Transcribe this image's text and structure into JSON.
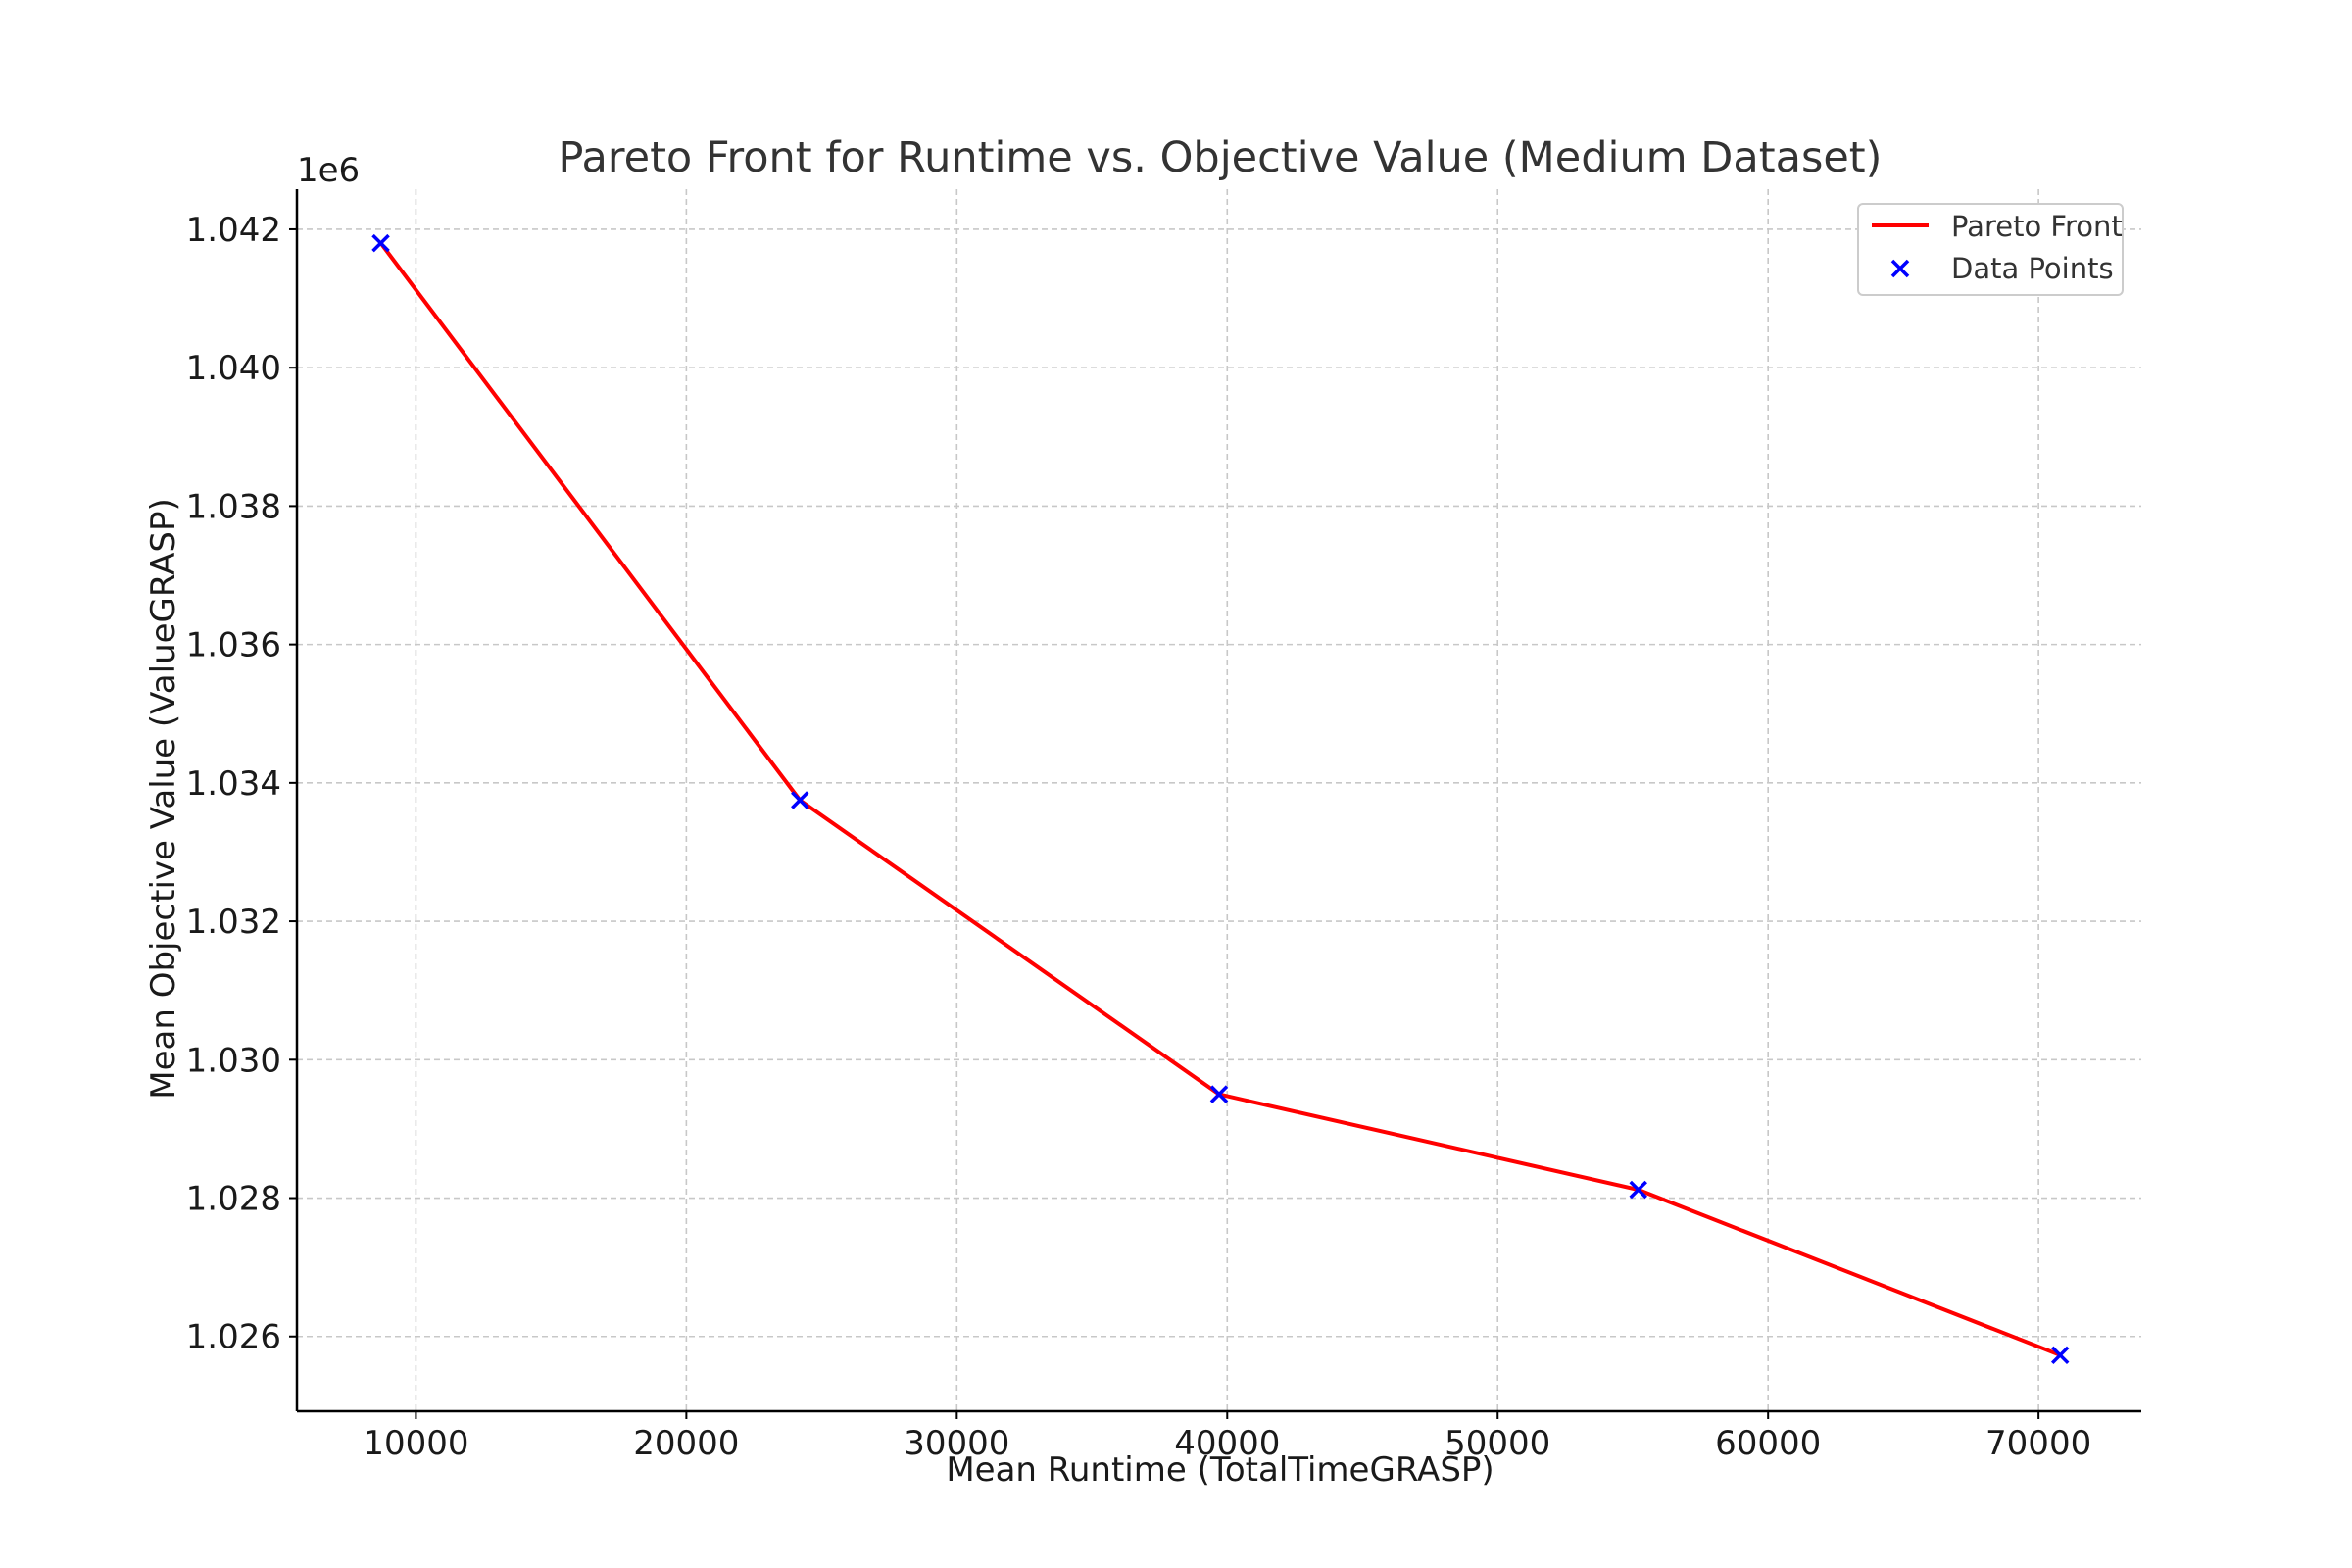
{
  "chart_data": {
    "type": "line",
    "title": "Pareto Front for Runtime vs. Objective Value (Medium Dataset)",
    "xlabel": "Mean Runtime (TotalTimeGRASP)",
    "ylabel": "Mean Objective Value (ValueGRASP)",
    "y_offset_label": "1e6",
    "xlim": [
      5600,
      73800
    ],
    "ylim": [
      1024920,
      1042580
    ],
    "x_ticks": [
      10000,
      20000,
      30000,
      40000,
      50000,
      60000,
      70000
    ],
    "x_tick_labels": [
      "10000",
      "20000",
      "30000",
      "40000",
      "50000",
      "60000",
      "70000"
    ],
    "y_ticks": [
      1026000,
      1028000,
      1030000,
      1032000,
      1034000,
      1036000,
      1038000,
      1040000,
      1042000
    ],
    "y_tick_labels": [
      "1.026",
      "1.028",
      "1.030",
      "1.032",
      "1.034",
      "1.036",
      "1.038",
      "1.040",
      "1.042"
    ],
    "grid": true,
    "legend_position": "top-right",
    "series": [
      {
        "name": "Pareto Front",
        "kind": "line",
        "color": "#ff0000",
        "x": [
          8700,
          24200,
          39700,
          55200,
          70800
        ],
        "y": [
          1041800,
          1033750,
          1029500,
          1028120,
          1025730
        ]
      },
      {
        "name": "Data Points",
        "kind": "scatter",
        "marker": "x",
        "color": "#0000ff",
        "x": [
          8700,
          24200,
          39700,
          55200,
          70800
        ],
        "y": [
          1041800,
          1033750,
          1029500,
          1028120,
          1025730
        ]
      }
    ]
  }
}
